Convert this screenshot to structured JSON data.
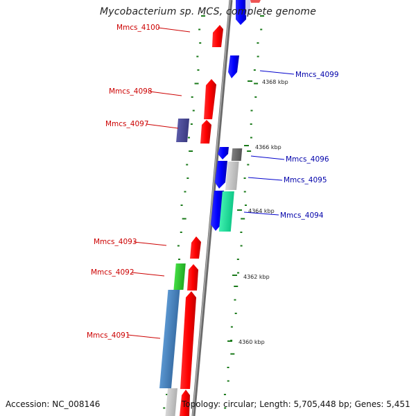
{
  "title": "Mycobacterium sp. MCS, complete genome",
  "footer": {
    "accession": "Accession: NC_008146",
    "summary": "Topology: circular; Length: 5,705,448 bp; Genes: 5,451"
  },
  "scale_labels": [
    "4368 kbp",
    "4366 kbp",
    "4364 kbp",
    "4362 kbp",
    "4360 kbp"
  ],
  "genes": [
    {
      "name": "Mmcs_4100",
      "strand": "forward",
      "color": "#cc0000"
    },
    {
      "name": "Mmcs_4099",
      "strand": "reverse",
      "color": "#0000cc"
    },
    {
      "name": "Mmcs_4098",
      "strand": "forward",
      "color": "#cc0000"
    },
    {
      "name": "Mmcs_4097",
      "strand": "forward",
      "color": "#cc0000"
    },
    {
      "name": "Mmcs_4096",
      "strand": "reverse",
      "color": "#0000cc"
    },
    {
      "name": "Mmcs_4095",
      "strand": "reverse",
      "color": "#0000cc"
    },
    {
      "name": "Mmcs_4094",
      "strand": "reverse",
      "color": "#0000cc"
    },
    {
      "name": "Mmcs_4093",
      "strand": "forward",
      "color": "#cc0000"
    },
    {
      "name": "Mmcs_4092",
      "strand": "forward",
      "color": "#cc0000"
    },
    {
      "name": "Mmcs_4091",
      "strand": "forward",
      "color": "#cc0000"
    }
  ],
  "colors": {
    "forward_gene": "#ff0000",
    "reverse_gene": "#0000ff",
    "backbone": "#888888",
    "tick_marks": "#1a7a1a",
    "cog_purple": "#4b4b9a",
    "cog_gray": "#6e6e6e",
    "cog_lightgray": "#c8c8c8",
    "cog_teal": "#22e8a0",
    "cog_green": "#33cc33",
    "cog_steelblue": "#4a86c0"
  }
}
